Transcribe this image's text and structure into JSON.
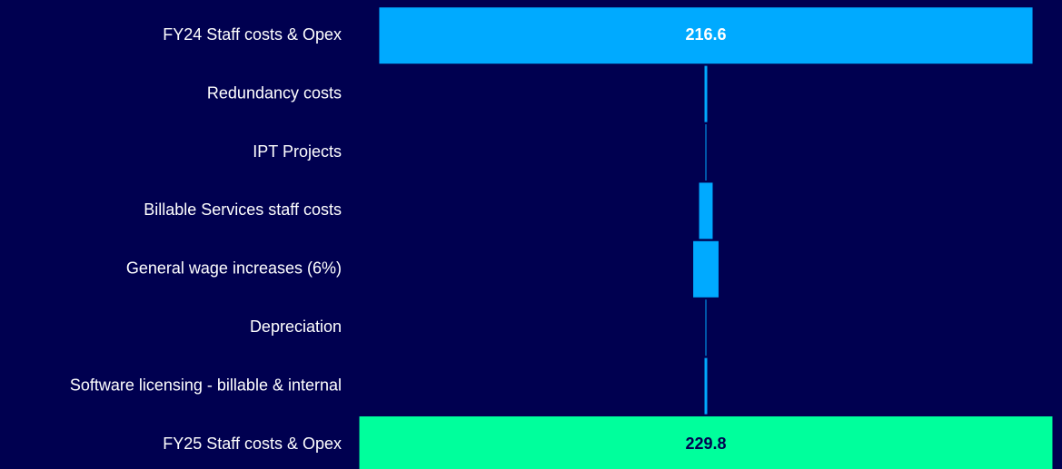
{
  "chart_data": {
    "type": "funnel",
    "categories": [
      "FY24 Staff costs & Opex",
      "Redundancy costs",
      "IPT Projects",
      "Billable Services staff costs",
      "General wage increases (6%)",
      "Depreciation",
      "Software licensing - billable & internal",
      "FY25 Staff costs & Opex"
    ],
    "values": [
      216.6,
      0.9,
      0.3,
      4.5,
      8.4,
      0.3,
      0.9,
      229.8
    ],
    "colors": [
      "#00aaff",
      "#00aaff",
      "#00aaff",
      "#00aaff",
      "#00aaff",
      "#00aaff",
      "#00aaff",
      "#00ff9c"
    ]
  }
}
